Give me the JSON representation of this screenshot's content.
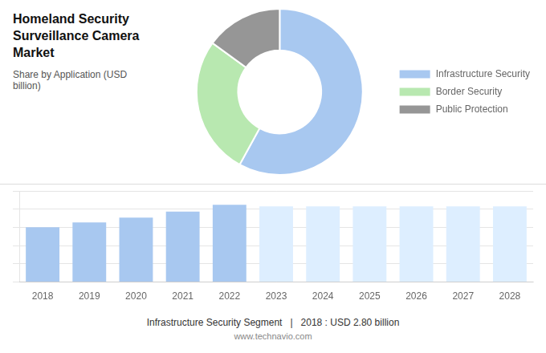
{
  "chart_data": [
    {
      "type": "doughnut",
      "title": "Homeland Security Surveillance Camera Market",
      "subtitle": "Share by Application (USD billion)",
      "categories": [
        "Infrastructure Security",
        "Border Security",
        "Public Protection"
      ],
      "values": [
        58,
        27,
        15
      ],
      "colors": [
        "#a8c8f0",
        "#b8e8b0",
        "#969696"
      ],
      "legend": "right"
    },
    {
      "type": "bar",
      "categories": [
        "2018",
        "2019",
        "2020",
        "2021",
        "2022",
        "2023",
        "2024",
        "2025",
        "2026",
        "2027",
        "2028"
      ],
      "values": [
        2.8,
        3.05,
        3.3,
        3.6,
        3.95,
        3.871,
        3.871,
        3.871,
        3.871,
        3.871,
        3.871
      ],
      "colors": [
        "#a8c8f0",
        "#a8c8f0",
        "#a8c8f0",
        "#a8c8f0",
        "#a8c8f0",
        "#ddeeff",
        "#ddeeff",
        "#ddeeff",
        "#ddeeff",
        "#ddeeff",
        "#ddeeff"
      ],
      "ylim": [
        0,
        4.661
      ],
      "yticks": [
        0,
        0.9322,
        1.8644,
        2.7966,
        3.7288,
        4.661
      ],
      "grid": true,
      "tick_labels": "x",
      "annotations": [
        "Infrastructure Security Segment",
        "|",
        "2018 : USD 2.80 billion",
        "www.technavio.com"
      ]
    }
  ]
}
